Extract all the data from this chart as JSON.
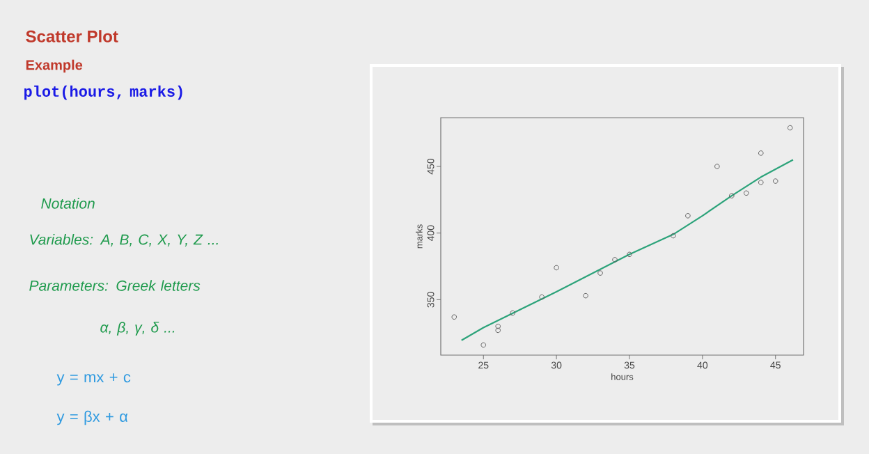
{
  "chart_data": {
    "type": "scatter",
    "title": "Scatter Plot",
    "subtitle": "Example",
    "xlabel": "hours",
    "ylabel": "marks",
    "annotations": [
      "plot(hours, marks)",
      "Notation",
      "Variables: A, B, C, X, Y, Z ...",
      "Parameters: Greek letters",
      "α, β, γ, δ ...",
      "y = mx + c",
      "y = βx + α"
    ],
    "xlim": [
      22.08,
      46.92
    ],
    "ylim": [
      308.4,
      486.6
    ],
    "xticks": [
      25,
      30,
      35,
      40,
      45
    ],
    "yticks": [
      350,
      400,
      450
    ],
    "series": [
      {
        "marker": "circle",
        "color": "#555555",
        "x": [
          23,
          25,
          26,
          26,
          27,
          29,
          30,
          32,
          33,
          34,
          35,
          38,
          39,
          41,
          42,
          43,
          44,
          44,
          45,
          46
        ],
        "values": [
          337,
          316,
          330,
          327,
          340,
          352,
          374,
          353,
          370,
          380,
          384,
          398,
          413,
          450,
          428,
          430,
          460,
          438,
          439,
          479
        ]
      },
      {
        "type": "line",
        "color": "#2ca37a",
        "x": [
          23.5,
          25,
          30,
          35,
          38,
          40,
          42,
          44,
          46.2
        ],
        "values": [
          319.5,
          329,
          356,
          384,
          399,
          413,
          428,
          442,
          455
        ]
      }
    ]
  }
}
